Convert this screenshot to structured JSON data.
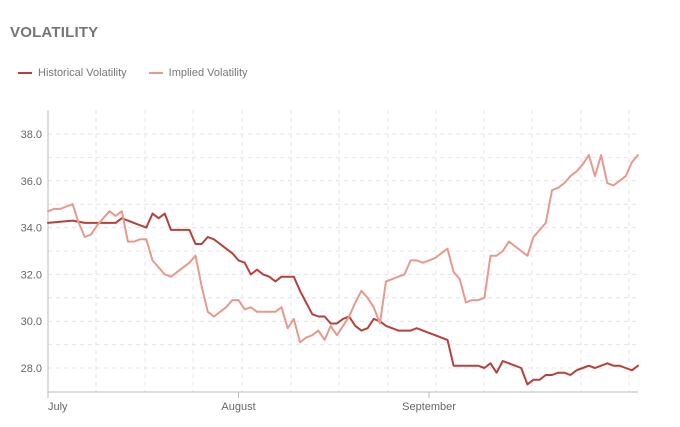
{
  "header": {
    "title": "VOLATILITY"
  },
  "colors": {
    "historical": "#b5413c",
    "implied": "#e69a8e",
    "grid": "#e4e4e4",
    "axis": "#bbbbbb"
  },
  "chart_data": {
    "type": "line",
    "title": "VOLATILITY",
    "xlabel": "",
    "ylabel": "",
    "x_tick_labels": [
      "July",
      "August",
      "September"
    ],
    "x_tick_days": [
      1,
      32,
      63
    ],
    "y_ticks": [
      28.0,
      30.0,
      32.0,
      34.0,
      36.0,
      38.0
    ],
    "y_tick_labels": [
      "28.0",
      "30.0",
      "32.0",
      "34.0",
      "36.0",
      "38.0"
    ],
    "xlim": [
      1,
      97
    ],
    "ylim": [
      27.0,
      39.0
    ],
    "grid": true,
    "legend_position": "top-left",
    "series": [
      {
        "name": "Historical Volatility",
        "color": "#b5413c",
        "x": [
          1,
          5,
          7,
          8,
          9,
          10,
          11,
          12,
          13,
          14,
          15,
          16,
          17,
          18,
          19,
          20,
          21,
          22,
          23,
          24,
          25,
          26,
          27,
          28,
          29,
          30,
          31,
          32,
          33,
          34,
          35,
          36,
          37,
          38,
          39,
          40,
          41,
          42,
          43,
          44,
          45,
          46,
          47,
          48,
          49,
          50,
          51,
          52,
          53,
          54,
          55,
          56,
          57,
          58,
          59,
          60,
          61,
          62,
          63,
          64,
          65,
          66,
          67,
          68,
          69,
          70,
          71,
          72,
          73,
          74,
          75,
          76,
          77,
          78,
          79,
          80,
          81,
          82,
          83,
          84,
          85,
          86,
          87,
          88,
          89,
          90,
          91,
          92,
          93,
          94,
          95,
          96,
          97
        ],
        "y": [
          34.2,
          34.3,
          34.2,
          34.2,
          34.2,
          34.2,
          34.2,
          34.2,
          34.4,
          34.3,
          34.2,
          34.1,
          34.0,
          34.6,
          34.4,
          34.6,
          33.9,
          33.9,
          33.9,
          33.9,
          33.3,
          33.3,
          33.6,
          33.5,
          33.3,
          33.1,
          32.9,
          32.6,
          32.5,
          32.0,
          32.2,
          32.0,
          31.9,
          31.7,
          31.9,
          31.9,
          31.9,
          31.3,
          30.8,
          30.3,
          30.2,
          30.2,
          29.9,
          29.9,
          30.1,
          30.2,
          29.8,
          29.6,
          29.7,
          30.1,
          30.0,
          29.8,
          29.7,
          29.6,
          29.6,
          29.6,
          29.7,
          29.6,
          29.5,
          29.4,
          29.3,
          29.2,
          28.1,
          28.1,
          28.1,
          28.1,
          28.1,
          28.0,
          28.2,
          27.8,
          28.3,
          28.2,
          28.1,
          28.0,
          27.3,
          27.5,
          27.5,
          27.7,
          27.7,
          27.8,
          27.8,
          27.7,
          27.9,
          28.0,
          28.1,
          28.0,
          28.1,
          28.2,
          28.1,
          28.1,
          28.0,
          27.9,
          28.1
        ]
      },
      {
        "name": "Implied Volatility",
        "color": "#e69a8e",
        "x": [
          1,
          2,
          3,
          4,
          5,
          6,
          7,
          8,
          9,
          10,
          11,
          12,
          13,
          14,
          15,
          16,
          17,
          18,
          19,
          20,
          21,
          22,
          23,
          24,
          25,
          26,
          27,
          28,
          29,
          30,
          31,
          32,
          33,
          34,
          35,
          36,
          37,
          38,
          39,
          40,
          41,
          42,
          43,
          44,
          45,
          46,
          47,
          48,
          49,
          50,
          51,
          52,
          53,
          54,
          55,
          56,
          57,
          58,
          59,
          60,
          61,
          62,
          63,
          64,
          65,
          66,
          67,
          68,
          69,
          70,
          71,
          72,
          73,
          74,
          75,
          76,
          77,
          78,
          79,
          80,
          81,
          82,
          83,
          84,
          85,
          86,
          87,
          88,
          89,
          90,
          91,
          92,
          93,
          94,
          95,
          96,
          97
        ],
        "y": [
          34.7,
          34.8,
          34.8,
          34.9,
          35.0,
          34.2,
          33.6,
          33.7,
          34.1,
          34.4,
          34.7,
          34.5,
          34.7,
          33.4,
          33.4,
          33.5,
          33.5,
          32.6,
          32.3,
          32.0,
          31.9,
          32.1,
          32.3,
          32.5,
          32.8,
          31.5,
          30.4,
          30.2,
          30.4,
          30.6,
          30.9,
          30.9,
          30.5,
          30.6,
          30.4,
          30.4,
          30.4,
          30.4,
          30.6,
          29.7,
          30.1,
          29.1,
          29.3,
          29.4,
          29.6,
          29.2,
          29.8,
          29.4,
          29.8,
          30.2,
          30.8,
          31.3,
          31.0,
          30.6,
          29.9,
          31.7,
          31.8,
          31.9,
          32.0,
          32.6,
          32.6,
          32.5,
          32.6,
          32.7,
          32.9,
          33.1,
          32.1,
          31.8,
          30.8,
          30.9,
          30.9,
          31.0,
          32.8,
          32.8,
          33.0,
          33.4,
          33.2,
          33.0,
          32.8,
          33.6,
          33.9,
          34.2,
          35.6,
          35.7,
          35.9,
          36.2,
          36.4,
          36.7,
          37.1,
          36.2,
          37.1,
          35.9,
          35.8,
          36.0,
          36.2,
          36.8,
          37.1
        ]
      }
    ]
  }
}
